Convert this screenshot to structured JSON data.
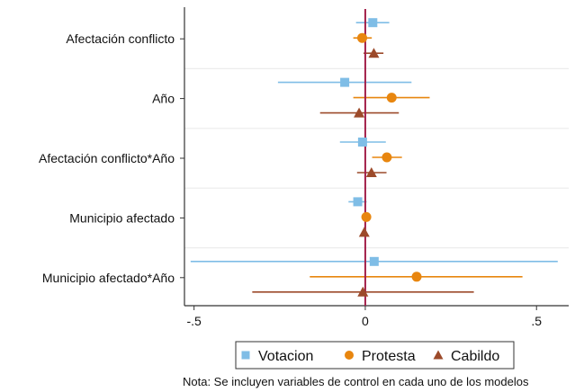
{
  "chart_data": {
    "type": "coefficient-plot",
    "title": "",
    "xlabel": "",
    "ylabel": "",
    "xlim": [
      -0.528,
      0.594
    ],
    "xticks": [
      -0.5,
      0,
      0.5
    ],
    "xtick_labels": [
      "-.5",
      "0",
      ".5"
    ],
    "reference_line": 0,
    "grid": "horizontal separators between categories",
    "legend_placement": "bottom",
    "categories": [
      "Afectación conflicto",
      "Año",
      "Afectación conflicto*Año",
      "Municipio afectado",
      "Municipio afectado*Año"
    ],
    "series": [
      {
        "name": "Votacion",
        "marker": "square",
        "color": "#7fbde6",
        "estimate": [
          0.022,
          -0.06,
          -0.008,
          -0.022,
          0.026
        ],
        "ci_low": [
          -0.027,
          -0.255,
          -0.074,
          -0.049,
          -0.51
        ],
        "ci_high": [
          0.07,
          0.135,
          0.06,
          0.004,
          0.562
        ]
      },
      {
        "name": "Protesta",
        "marker": "circle",
        "color": "#e8860f",
        "estimate": [
          -0.009,
          0.077,
          0.063,
          0.003,
          0.15
        ],
        "ci_low": [
          -0.035,
          -0.035,
          0.02,
          0.0,
          -0.162
        ],
        "ci_high": [
          0.019,
          0.188,
          0.107,
          0.006,
          0.459
        ]
      },
      {
        "name": "Cabildo",
        "marker": "triangle",
        "color": "#9c4a2a",
        "estimate": [
          0.025,
          -0.018,
          0.018,
          -0.003,
          -0.007
        ],
        "ci_low": [
          -0.005,
          -0.132,
          -0.024,
          -0.01,
          -0.33
        ],
        "ci_high": [
          0.053,
          0.098,
          0.062,
          0.004,
          0.317
        ]
      }
    ],
    "reference_line_color": "#a3204a",
    "note": "Nota: Se incluyen variables de control en cada uno de los modelos"
  }
}
